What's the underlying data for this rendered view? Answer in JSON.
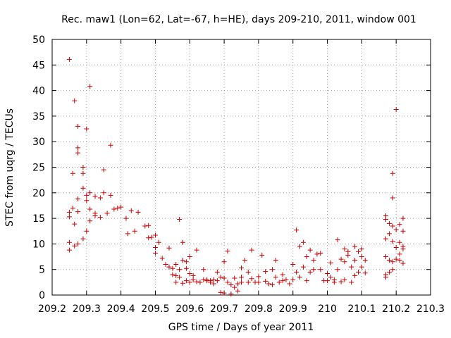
{
  "chart_data": {
    "type": "scatter",
    "title": "Rec. maw1 (Lon=62, Lat=-67, h=HE), days 209-210, 2011, window 001",
    "xlabel": "GPS time / Days of year 2011",
    "ylabel": "STEC from uqrg / TECUs",
    "xlim": [
      209.2,
      210.3
    ],
    "ylim": [
      0,
      50
    ],
    "xticks": [
      209.2,
      209.3,
      209.4,
      209.5,
      209.6,
      209.7,
      209.8,
      209.9,
      210.0,
      210.1,
      210.2,
      210.3
    ],
    "xtick_labels": [
      "209.2",
      "209.3",
      "209.4",
      "209.5",
      "209.6",
      "209.7",
      "209.8",
      "209.9",
      "210",
      "210.1",
      "210.2",
      "210.3"
    ],
    "yticks": [
      0,
      5,
      10,
      15,
      20,
      25,
      30,
      35,
      40,
      45,
      50
    ],
    "ytick_labels": [
      "0",
      "5",
      "10",
      "15",
      "20",
      "25",
      "30",
      "35",
      "40",
      "45",
      "50"
    ],
    "grid": true,
    "marker": "+",
    "color": "#cc0000",
    "series": [
      {
        "name": "STEC",
        "points": [
          [
            209.25,
            46.1
          ],
          [
            209.25,
            16.2
          ],
          [
            209.25,
            15.3
          ],
          [
            209.25,
            10.3
          ],
          [
            209.25,
            8.8
          ],
          [
            209.26,
            23.8
          ],
          [
            209.26,
            17.0
          ],
          [
            209.265,
            38.0
          ],
          [
            209.265,
            13.9
          ],
          [
            209.265,
            9.6
          ],
          [
            209.275,
            33.0
          ],
          [
            209.275,
            28.8
          ],
          [
            209.275,
            27.8
          ],
          [
            209.275,
            18.8
          ],
          [
            209.275,
            16.3
          ],
          [
            209.275,
            10.0
          ],
          [
            209.29,
            25.0
          ],
          [
            209.29,
            23.8
          ],
          [
            209.29,
            20.9
          ],
          [
            209.29,
            11.0
          ],
          [
            209.3,
            32.5
          ],
          [
            209.3,
            19.5
          ],
          [
            209.3,
            18.5
          ],
          [
            209.3,
            12.5
          ],
          [
            209.31,
            40.8
          ],
          [
            209.31,
            20.0
          ],
          [
            209.31,
            16.8
          ],
          [
            209.31,
            14.5
          ],
          [
            209.325,
            19.3
          ],
          [
            209.325,
            16.0
          ],
          [
            209.325,
            15.5
          ],
          [
            209.34,
            19.0
          ],
          [
            209.34,
            15.2
          ],
          [
            209.35,
            24.5
          ],
          [
            209.35,
            20.0
          ],
          [
            209.36,
            16.0
          ],
          [
            209.37,
            29.3
          ],
          [
            209.37,
            19.5
          ],
          [
            209.38,
            16.8
          ],
          [
            209.39,
            17.0
          ],
          [
            209.4,
            17.2
          ],
          [
            209.415,
            15.0
          ],
          [
            209.42,
            12.0
          ],
          [
            209.43,
            16.5
          ],
          [
            209.44,
            12.5
          ],
          [
            209.45,
            16.2
          ],
          [
            209.47,
            13.5
          ],
          [
            209.48,
            13.6
          ],
          [
            209.48,
            11.2
          ],
          [
            209.49,
            11.3
          ],
          [
            209.5,
            11.7
          ],
          [
            209.5,
            9.3
          ],
          [
            209.5,
            8.2
          ],
          [
            209.51,
            10.3
          ],
          [
            209.52,
            7.2
          ],
          [
            209.53,
            6.0
          ],
          [
            209.54,
            5.5
          ],
          [
            209.54,
            9.2
          ],
          [
            209.55,
            5.2
          ],
          [
            209.55,
            4.0
          ],
          [
            209.56,
            6.0
          ],
          [
            209.56,
            3.8
          ],
          [
            209.56,
            2.5
          ],
          [
            209.57,
            14.8
          ],
          [
            209.57,
            5.0
          ],
          [
            209.57,
            3.5
          ],
          [
            209.58,
            6.8
          ],
          [
            209.58,
            10.3
          ],
          [
            209.58,
            2.3
          ],
          [
            209.59,
            6.5
          ],
          [
            209.59,
            5.2
          ],
          [
            209.59,
            2.8
          ],
          [
            209.6,
            7.5
          ],
          [
            209.6,
            4.2
          ],
          [
            209.6,
            2.5
          ],
          [
            209.61,
            3.8
          ],
          [
            209.61,
            3.0
          ],
          [
            209.62,
            8.8
          ],
          [
            209.62,
            2.6
          ],
          [
            209.63,
            2.5
          ],
          [
            209.64,
            3.0
          ],
          [
            209.64,
            5.0
          ],
          [
            209.65,
            3.0
          ],
          [
            209.65,
            2.8
          ],
          [
            209.66,
            2.5
          ],
          [
            209.66,
            2.8
          ],
          [
            209.67,
            3.0
          ],
          [
            209.67,
            2.2
          ],
          [
            209.68,
            4.5
          ],
          [
            209.68,
            2.8
          ],
          [
            209.69,
            3.5
          ],
          [
            209.69,
            0.5
          ],
          [
            209.7,
            3.3
          ],
          [
            209.7,
            0.4
          ],
          [
            209.7,
            6.5
          ],
          [
            209.71,
            2.5
          ],
          [
            209.71,
            8.6
          ],
          [
            209.72,
            2.0
          ],
          [
            209.72,
            0.2
          ],
          [
            209.73,
            3.3
          ],
          [
            209.73,
            1.5
          ],
          [
            209.74,
            2.2
          ],
          [
            209.74,
            0.8
          ],
          [
            209.75,
            2.5
          ],
          [
            209.75,
            3.5
          ],
          [
            209.75,
            5.3
          ],
          [
            209.76,
            6.8
          ],
          [
            209.77,
            2.5
          ],
          [
            209.77,
            4.5
          ],
          [
            209.78,
            8.8
          ],
          [
            209.78,
            3.2
          ],
          [
            209.79,
            2.5
          ],
          [
            209.8,
            3.6
          ],
          [
            209.8,
            2.5
          ],
          [
            209.81,
            7.8
          ],
          [
            209.82,
            2.7
          ],
          [
            209.82,
            4.6
          ],
          [
            209.83,
            2.2
          ],
          [
            209.84,
            5.0
          ],
          [
            209.84,
            2.0
          ],
          [
            209.85,
            6.8
          ],
          [
            209.85,
            3.5
          ],
          [
            209.86,
            2.5
          ],
          [
            209.87,
            2.8
          ],
          [
            209.87,
            4.0
          ],
          [
            209.88,
            3.0
          ],
          [
            209.89,
            2.2
          ],
          [
            209.9,
            3.0
          ],
          [
            209.9,
            6.0
          ],
          [
            209.91,
            12.7
          ],
          [
            209.91,
            4.5
          ],
          [
            209.92,
            9.5
          ],
          [
            209.92,
            3.5
          ],
          [
            209.93,
            10.3
          ],
          [
            209.93,
            5.5
          ],
          [
            209.94,
            7.5
          ],
          [
            209.94,
            2.8
          ],
          [
            209.95,
            8.8
          ],
          [
            209.95,
            4.5
          ],
          [
            209.96,
            5.0
          ],
          [
            209.96,
            6.8
          ],
          [
            209.97,
            8.0
          ],
          [
            209.98,
            8.2
          ],
          [
            209.98,
            5.0
          ],
          [
            209.99,
            2.8
          ],
          [
            210.0,
            2.8
          ],
          [
            210.0,
            4.2
          ],
          [
            210.01,
            3.5
          ],
          [
            210.01,
            6.3
          ],
          [
            210.02,
            2.5
          ],
          [
            210.02,
            3.0
          ],
          [
            210.03,
            5.0
          ],
          [
            210.03,
            10.8
          ],
          [
            210.04,
            2.6
          ],
          [
            210.04,
            7.0
          ],
          [
            210.05,
            3.0
          ],
          [
            210.05,
            9.0
          ],
          [
            210.05,
            6.5
          ],
          [
            210.06,
            7.8
          ],
          [
            210.06,
            8.5
          ],
          [
            210.07,
            2.5
          ],
          [
            210.07,
            5.5
          ],
          [
            210.08,
            6.8
          ],
          [
            210.08,
            9.5
          ],
          [
            210.08,
            3.8
          ],
          [
            210.09,
            8.5
          ],
          [
            210.09,
            4.5
          ],
          [
            210.1,
            7.5
          ],
          [
            210.1,
            5.5
          ],
          [
            210.1,
            9.0
          ],
          [
            210.11,
            6.8
          ],
          [
            210.11,
            4.3
          ],
          [
            210.17,
            15.5
          ],
          [
            210.17,
            14.8
          ],
          [
            210.17,
            11.0
          ],
          [
            210.17,
            7.5
          ],
          [
            210.17,
            4.0
          ],
          [
            210.17,
            3.5
          ],
          [
            210.18,
            14.0
          ],
          [
            210.18,
            12.0
          ],
          [
            210.18,
            6.8
          ],
          [
            210.18,
            4.5
          ],
          [
            210.19,
            23.8
          ],
          [
            210.19,
            19.0
          ],
          [
            210.19,
            13.5
          ],
          [
            210.19,
            10.5
          ],
          [
            210.19,
            6.5
          ],
          [
            210.19,
            5.0
          ],
          [
            210.2,
            36.3
          ],
          [
            210.2,
            12.8
          ],
          [
            210.2,
            9.3
          ],
          [
            210.2,
            7.0
          ],
          [
            210.21,
            13.8
          ],
          [
            210.21,
            10.3
          ],
          [
            210.21,
            8.0
          ],
          [
            210.21,
            6.8
          ],
          [
            210.22,
            15.0
          ],
          [
            210.22,
            12.5
          ],
          [
            210.22,
            9.5
          ],
          [
            210.22,
            9.0
          ],
          [
            210.22,
            6.2
          ]
        ]
      }
    ]
  }
}
